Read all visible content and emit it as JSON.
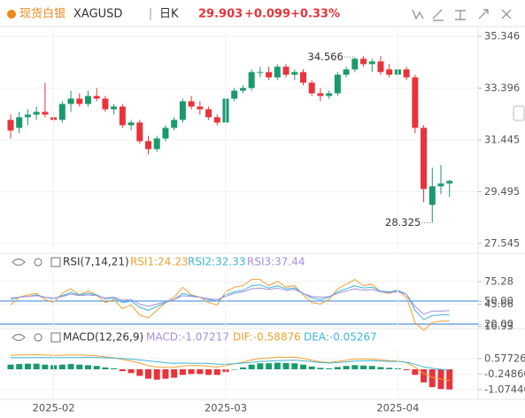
{
  "header": {
    "name": "现货白银",
    "symbol": "XAGUSD",
    "period": "日K",
    "price": "29.903",
    "change": "+0.099",
    "change_pct": "+0.33%"
  },
  "chart_data": [
    {
      "type": "candlestick",
      "up_color": "#1a9a6c",
      "down_color": "#e8333a",
      "open": [
        32.2,
        31.9,
        32.3,
        32.4,
        32.5,
        32.3,
        32.2,
        32.8,
        33.0,
        32.8,
        33.1,
        33.0,
        32.6,
        32.7,
        32.0,
        32.1,
        31.4,
        31.1,
        31.5,
        31.9,
        32.2,
        32.9,
        32.7,
        32.6,
        32.3,
        32.1,
        33.0,
        33.3,
        33.4,
        34.0,
        34.0,
        33.8,
        34.2,
        33.9,
        34.0,
        33.6,
        33.2,
        33.1,
        33.2,
        33.9,
        34.1,
        34.5,
        34.3,
        34.4,
        34.1,
        33.9,
        34.1,
        33.8,
        31.9,
        29.0,
        29.7,
        29.804
      ],
      "high": [
        32.4,
        32.5,
        32.6,
        32.7,
        33.6,
        32.5,
        32.9,
        33.3,
        33.2,
        33.3,
        33.4,
        33.1,
        32.8,
        32.8,
        32.2,
        32.2,
        31.6,
        31.6,
        32.0,
        32.3,
        33.0,
        33.1,
        32.9,
        32.7,
        32.4,
        33.1,
        33.4,
        33.5,
        34.1,
        34.2,
        34.2,
        34.3,
        34.3,
        34.1,
        34.1,
        33.7,
        33.4,
        33.3,
        34.0,
        34.2,
        34.566,
        34.6,
        34.5,
        34.6,
        34.3,
        34.3,
        34.2,
        33.9,
        32.0,
        30.4,
        30.5,
        29.95
      ],
      "low": [
        31.5,
        31.7,
        32.0,
        32.2,
        32.3,
        32.1,
        32.1,
        32.5,
        32.7,
        32.7,
        32.9,
        32.5,
        32.4,
        31.9,
        31.8,
        31.3,
        30.9,
        31.0,
        31.4,
        31.8,
        32.1,
        32.6,
        32.4,
        32.2,
        32.0,
        32.0,
        32.9,
        33.2,
        33.3,
        33.8,
        33.7,
        33.7,
        33.8,
        33.7,
        33.5,
        33.1,
        32.9,
        33.0,
        33.1,
        33.8,
        34.0,
        34.2,
        34.0,
        33.9,
        33.8,
        33.8,
        33.7,
        31.7,
        29.1,
        28.325,
        29.4,
        29.3
      ],
      "close": [
        31.8,
        32.3,
        32.4,
        32.5,
        32.4,
        32.2,
        32.8,
        33.0,
        32.8,
        33.1,
        33.0,
        32.6,
        32.7,
        32.0,
        32.1,
        31.4,
        31.1,
        31.5,
        31.9,
        32.2,
        32.9,
        32.7,
        32.6,
        32.3,
        32.1,
        33.0,
        33.3,
        33.4,
        34.0,
        34.0,
        33.8,
        34.2,
        33.9,
        34.0,
        33.6,
        33.2,
        33.1,
        33.2,
        33.9,
        34.1,
        34.5,
        34.3,
        34.4,
        34.0,
        33.9,
        34.1,
        33.8,
        31.9,
        29.6,
        29.7,
        29.804,
        29.903
      ],
      "ylim": [
        27.279,
        35.546
      ],
      "yticks": [
        35.346,
        33.396,
        31.445,
        29.495,
        27.545
      ],
      "annotations": [
        {
          "value": 34.566,
          "label": "34.566",
          "of": "high"
        },
        {
          "value": 28.325,
          "label": "28.325",
          "of": "low"
        }
      ]
    },
    {
      "type": "line",
      "title": "RSI(7,14,21)",
      "series": [
        {
          "name": "RSI1:24.23",
          "color": "#f0a030",
          "values": [
            45,
            55,
            58,
            60,
            52,
            48,
            60,
            66,
            58,
            63,
            58,
            48,
            52,
            40,
            45,
            32,
            28,
            38,
            48,
            55,
            68,
            58,
            55,
            48,
            45,
            62,
            68,
            70,
            78,
            78,
            70,
            76,
            68,
            70,
            58,
            48,
            46,
            52,
            66,
            72,
            78,
            70,
            72,
            62,
            60,
            64,
            55,
            22,
            12,
            22,
            24,
            24.23
          ]
        },
        {
          "name": "RSI2:32.33",
          "color": "#3fb5d8",
          "values": [
            52,
            55,
            56,
            58,
            55,
            53,
            57,
            61,
            58,
            60,
            58,
            53,
            54,
            48,
            50,
            42,
            38,
            43,
            48,
            52,
            60,
            57,
            55,
            52,
            50,
            58,
            62,
            64,
            70,
            71,
            67,
            70,
            66,
            67,
            60,
            54,
            52,
            55,
            62,
            66,
            70,
            67,
            68,
            63,
            62,
            64,
            59,
            38,
            26,
            31,
            32,
            32.33
          ]
        },
        {
          "name": "RSI3:37.44",
          "color": "#a58ee0",
          "values": [
            54,
            55,
            56,
            57,
            55,
            54,
            56,
            59,
            57,
            58,
            57,
            54,
            55,
            51,
            52,
            46,
            43,
            46,
            49,
            52,
            57,
            56,
            55,
            53,
            52,
            56,
            60,
            62,
            66,
            67,
            65,
            67,
            64,
            65,
            60,
            56,
            55,
            56,
            60,
            63,
            66,
            64,
            65,
            62,
            61,
            62,
            59,
            43,
            33,
            37,
            37,
            37.44
          ]
        }
      ],
      "ylim": [
        15.4,
        86.8
      ],
      "yticks": [
        75.28,
        {
          "value": 50,
          "label": "50.00"
        },
        45.66,
        {
          "value": 20,
          "label": "20.00"
        },
        16.93
      ],
      "levels": [
        50,
        20
      ],
      "level_color": "#4a90e2"
    },
    {
      "type": "combo",
      "title": "MACD(12,26,9)",
      "categories": [
        null,
        null,
        null,
        null,
        null,
        "2025-02",
        null,
        null,
        null,
        null,
        null,
        null,
        null,
        null,
        null,
        null,
        null,
        null,
        null,
        null,
        null,
        null,
        null,
        null,
        null,
        "2025-03",
        null,
        null,
        null,
        null,
        null,
        null,
        null,
        null,
        null,
        null,
        null,
        null,
        null,
        null,
        null,
        null,
        null,
        null,
        null,
        "2025-04",
        null,
        null,
        null,
        null,
        null,
        null
      ],
      "up_color": "#1a9a6c",
      "down_color": "#e8333a",
      "series": [
        {
          "name": "MACD:-1.07217",
          "kind": "bar",
          "color": "#a58ee0",
          "values": [
            0.25,
            0.28,
            0.3,
            0.3,
            0.25,
            0.22,
            0.25,
            0.28,
            0.25,
            0.22,
            0.18,
            0.1,
            0.05,
            -0.1,
            -0.2,
            -0.35,
            -0.5,
            -0.55,
            -0.5,
            -0.45,
            -0.3,
            -0.25,
            -0.25,
            -0.3,
            -0.3,
            -0.15,
            0.0,
            0.1,
            0.25,
            0.32,
            0.32,
            0.35,
            0.33,
            0.32,
            0.25,
            0.15,
            0.08,
            0.05,
            0.12,
            0.18,
            0.22,
            0.2,
            0.18,
            0.12,
            0.08,
            0.05,
            -0.05,
            -0.3,
            -0.7,
            -0.95,
            -1.05,
            -1.07217
          ]
        },
        {
          "name": "DIF:-0.58876",
          "kind": "line",
          "color": "#f0a030",
          "values": [
            0.75,
            0.76,
            0.77,
            0.78,
            0.76,
            0.74,
            0.75,
            0.77,
            0.76,
            0.75,
            0.72,
            0.66,
            0.62,
            0.52,
            0.45,
            0.33,
            0.2,
            0.12,
            0.1,
            0.1,
            0.18,
            0.2,
            0.2,
            0.16,
            0.12,
            0.2,
            0.3,
            0.38,
            0.5,
            0.58,
            0.6,
            0.64,
            0.64,
            0.64,
            0.58,
            0.48,
            0.4,
            0.36,
            0.42,
            0.48,
            0.55,
            0.55,
            0.55,
            0.5,
            0.46,
            0.44,
            0.36,
            0.12,
            -0.22,
            -0.42,
            -0.52,
            -0.58876
          ]
        },
        {
          "name": "DEA:-0.05267",
          "kind": "line",
          "color": "#3fb5d8",
          "values": [
            0.62,
            0.62,
            0.62,
            0.63,
            0.63,
            0.63,
            0.63,
            0.63,
            0.63,
            0.64,
            0.63,
            0.61,
            0.6,
            0.57,
            0.55,
            0.5,
            0.45,
            0.4,
            0.35,
            0.32,
            0.33,
            0.32,
            0.32,
            0.31,
            0.27,
            0.27,
            0.3,
            0.33,
            0.37,
            0.42,
            0.44,
            0.46,
            0.47,
            0.48,
            0.45,
            0.41,
            0.36,
            0.33,
            0.36,
            0.39,
            0.44,
            0.45,
            0.46,
            0.44,
            0.42,
            0.42,
            0.38,
            0.27,
            0.13,
            0.05,
            0.0,
            -0.05267
          ]
        }
      ],
      "ylim": [
        -1.557,
        1.133
      ],
      "yticks": [
        0.57726,
        {
          "value": -0.2486,
          "label": "-0.24860"
        },
        -1.07446
      ]
    }
  ]
}
